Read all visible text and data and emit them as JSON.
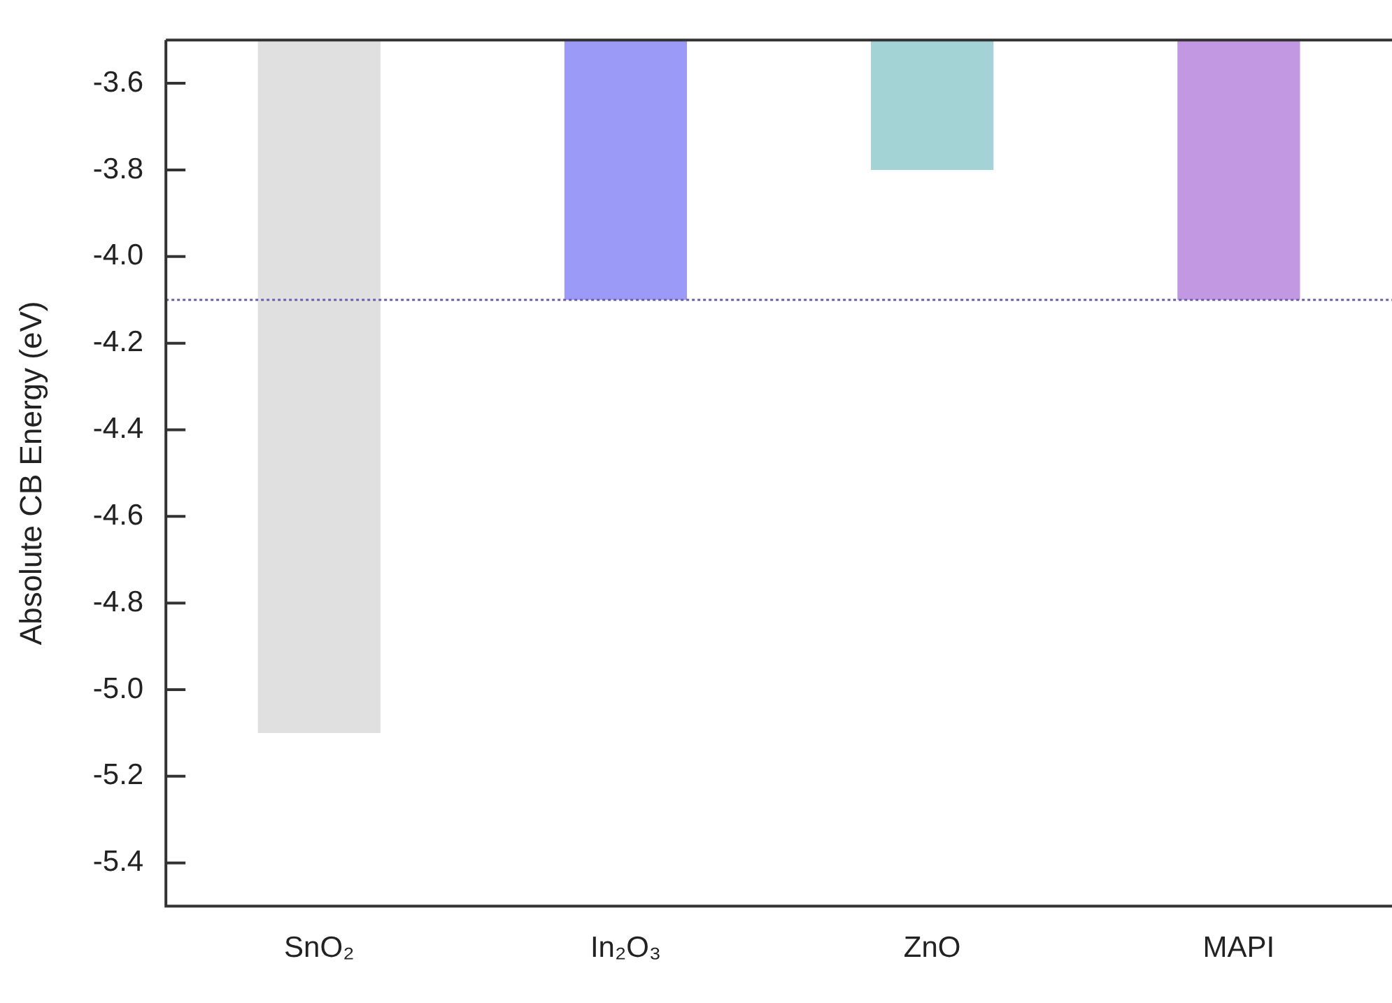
{
  "chart_data": {
    "type": "bar",
    "ylabel": "Absolute CB Energy (eV)",
    "categories": [
      "SnO₂",
      "In₂O₃",
      "ZnO",
      "MAPI"
    ],
    "values": [
      -5.1,
      -4.1,
      -3.8,
      -4.1
    ],
    "colors": [
      "#e0e0e0",
      "#9b9bf7",
      "#a3d3d4",
      "#c298e2"
    ],
    "ylim": [
      -5.5,
      -3.5
    ],
    "yticks": [
      -5.4,
      -5.2,
      {
        "value": -5,
        "label": "-5.0"
      },
      -4.8,
      -4.6,
      -4.4,
      -4.2,
      {
        "value": -4,
        "label": "-4.0"
      },
      -3.8,
      -3.6
    ],
    "ref_lines": [
      {
        "axis": "y",
        "value": -4.1,
        "color": "#6a5fa8",
        "line_style": "dotted"
      }
    ]
  }
}
